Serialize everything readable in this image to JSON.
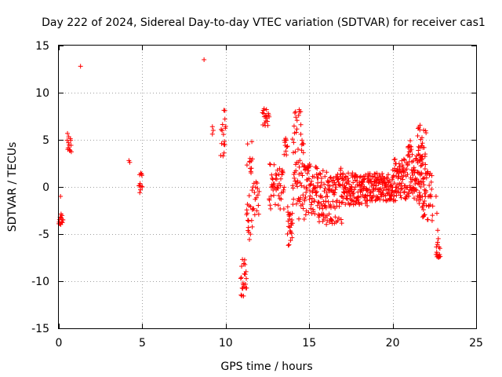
{
  "chart_data": {
    "type": "scatter",
    "title": "Day 222 of 2024, Sidereal Day-to-day VTEC variation (SDTVAR) for receiver cas1",
    "xlabel": "GPS time / hours",
    "ylabel": "SDTVAR / TECUs",
    "xlim": [
      0,
      25
    ],
    "ylim": [
      -15,
      15
    ],
    "xticks": [
      0,
      5,
      10,
      15,
      20,
      25
    ],
    "yticks": [
      -15,
      -10,
      -5,
      0,
      5,
      10,
      15
    ],
    "xtick_labels": [
      "0",
      "5",
      "10",
      "15",
      "20",
      "25"
    ],
    "ytick_labels": [
      "-15",
      "-10",
      "-5",
      "0",
      "5",
      "10",
      "15"
    ],
    "grid": true,
    "marker": "plus",
    "color": "#ff0000",
    "clusters": [
      {
        "x_start": 0.0,
        "x_end": 0.25,
        "y_min": -4.0,
        "y_max": -2.8,
        "n": 14
      },
      {
        "x_start": 0.5,
        "x_end": 0.75,
        "y_min": 3.7,
        "y_max": 5.8,
        "n": 14
      },
      {
        "x_start": 4.8,
        "x_end": 5.0,
        "y_min": -0.5,
        "y_max": 1.5,
        "n": 10
      },
      {
        "x_start": 9.7,
        "x_end": 10.0,
        "y_min": 2.3,
        "y_max": 8.3,
        "n": 12
      },
      {
        "x_start": 10.9,
        "x_end": 11.25,
        "y_min": -12.0,
        "y_max": -7.5,
        "n": 22
      },
      {
        "x_start": 11.25,
        "x_end": 11.6,
        "y_min": -6.0,
        "y_max": 5.0,
        "n": 30
      },
      {
        "x_start": 11.6,
        "x_end": 12.0,
        "y_min": -3.0,
        "y_max": 1.0,
        "n": 18
      },
      {
        "x_start": 12.2,
        "x_end": 12.6,
        "y_min": 6.5,
        "y_max": 8.3,
        "n": 16
      },
      {
        "x_start": 12.6,
        "x_end": 13.5,
        "y_min": -2.5,
        "y_max": 2.5,
        "n": 50
      },
      {
        "x_start": 13.5,
        "x_end": 13.7,
        "y_min": 3.0,
        "y_max": 5.2,
        "n": 10
      },
      {
        "x_start": 13.7,
        "x_end": 14.0,
        "y_min": -6.2,
        "y_max": -2.0,
        "n": 24
      },
      {
        "x_start": 14.0,
        "x_end": 14.7,
        "y_min": -3.5,
        "y_max": 8.0,
        "n": 60
      },
      {
        "x_start": 14.7,
        "x_end": 15.5,
        "y_min": -3.0,
        "y_max": 2.5,
        "n": 60
      },
      {
        "x_start": 15.5,
        "x_end": 17.0,
        "y_min": -4.0,
        "y_max": 2.0,
        "n": 120
      },
      {
        "x_start": 17.0,
        "x_end": 18.5,
        "y_min": -2.0,
        "y_max": 1.5,
        "n": 120
      },
      {
        "x_start": 18.5,
        "x_end": 20.0,
        "y_min": -1.5,
        "y_max": 1.5,
        "n": 120
      },
      {
        "x_start": 20.0,
        "x_end": 20.9,
        "y_min": -1.5,
        "y_max": 3.0,
        "n": 80
      },
      {
        "x_start": 20.9,
        "x_end": 21.2,
        "y_min": -1.0,
        "y_max": 5.3,
        "n": 30
      },
      {
        "x_start": 21.2,
        "x_end": 21.8,
        "y_min": -1.5,
        "y_max": 3.5,
        "n": 50
      },
      {
        "x_start": 21.5,
        "x_end": 22.0,
        "y_min": -3.5,
        "y_max": 6.8,
        "n": 40
      },
      {
        "x_start": 21.8,
        "x_end": 22.4,
        "y_min": -4.0,
        "y_max": 2.0,
        "n": 35
      },
      {
        "x_start": 22.6,
        "x_end": 22.85,
        "y_min": -7.5,
        "y_max": -5.3,
        "n": 14
      }
    ],
    "points": [
      [
        0.1,
        -1.0
      ],
      [
        1.3,
        12.8
      ],
      [
        4.2,
        2.8
      ],
      [
        4.25,
        2.6
      ],
      [
        4.85,
        -0.6
      ],
      [
        8.7,
        13.5
      ],
      [
        9.2,
        6.4
      ],
      [
        9.25,
        6.0
      ],
      [
        9.2,
        5.6
      ],
      [
        9.9,
        4.5
      ],
      [
        9.9,
        3.6
      ],
      [
        9.95,
        7.2
      ],
      [
        9.95,
        8.1
      ],
      [
        12.4,
        7.0
      ],
      [
        12.3,
        8.3
      ],
      [
        13.6,
        3.8
      ],
      [
        13.6,
        5.0
      ],
      [
        14.2,
        7.4
      ],
      [
        14.4,
        8.2
      ],
      [
        14.5,
        6.6
      ],
      [
        22.6,
        -1.0
      ],
      [
        22.65,
        -2.8
      ],
      [
        22.7,
        -4.6
      ],
      [
        22.75,
        -7.5
      ],
      [
        22.7,
        -7.2
      ]
    ]
  }
}
